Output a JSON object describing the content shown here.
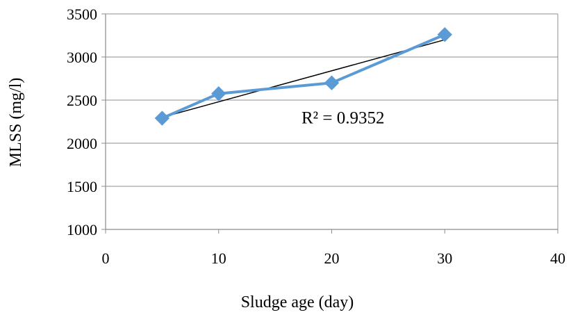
{
  "chart_data": {
    "type": "scatter",
    "title": "",
    "xlabel": "Sludge age (day)",
    "ylabel": "MLSS (mg/l)",
    "xlim": [
      0,
      40
    ],
    "ylim": [
      1000,
      3500
    ],
    "x_ticks": [
      "0",
      "10",
      "20",
      "30",
      "40"
    ],
    "y_ticks": [
      "1000",
      "1500",
      "2000",
      "2500",
      "3000",
      "3500"
    ],
    "grid": "horizontal",
    "legend": "none",
    "series": [
      {
        "color": "#5B9BD5",
        "marker": "diamond",
        "line": "straight-connected",
        "points": [
          {
            "x": 5,
            "y": 2290
          },
          {
            "x": 10,
            "y": 2575
          },
          {
            "x": 20,
            "y": 2700
          },
          {
            "x": 30,
            "y": 3260
          }
        ]
      }
    ],
    "trendline": {
      "type": "linear",
      "color": "#000000",
      "x_start": 5,
      "y_start": 2300,
      "x_end": 30,
      "y_end": 3200
    },
    "annotations": [
      {
        "text": "R² = 0.9352",
        "x": 21,
        "y": 2230
      }
    ]
  }
}
